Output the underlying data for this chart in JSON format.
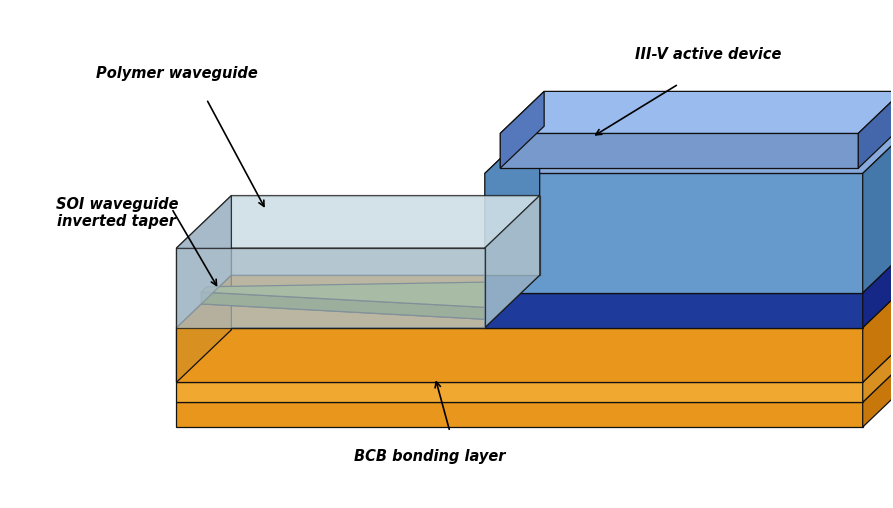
{
  "background_color": "#ffffff",
  "labels": {
    "polymer_waveguide": "Polymer waveguide",
    "soi_waveguide": "SOI waveguide\ninverted taper",
    "iii_v_device": "III-V active device",
    "bcb_layer": "BCB bonding layer"
  },
  "colors": {
    "orange_top": "#F5A835",
    "orange_front": "#E8961C",
    "orange_dark": "#D08010",
    "orange_light": "#F8BC55",
    "polymer_top": "#C8D8DC",
    "polymer_front": "#A8BCC8",
    "polymer_left": "#98AFBE",
    "polymer_back": "#B8CDD8",
    "iii_v_light_top": "#88AADD",
    "iii_v_light_front": "#6699CC",
    "iii_v_light_right": "#4477BB",
    "iii_v_dark_front": "#2244AA",
    "iii_v_dark_top": "#3355BB",
    "iii_v_dark_right": "#112288",
    "soi_top": "#9AAB30",
    "soi_dark": "#6A7B10",
    "outline": "#111111"
  }
}
